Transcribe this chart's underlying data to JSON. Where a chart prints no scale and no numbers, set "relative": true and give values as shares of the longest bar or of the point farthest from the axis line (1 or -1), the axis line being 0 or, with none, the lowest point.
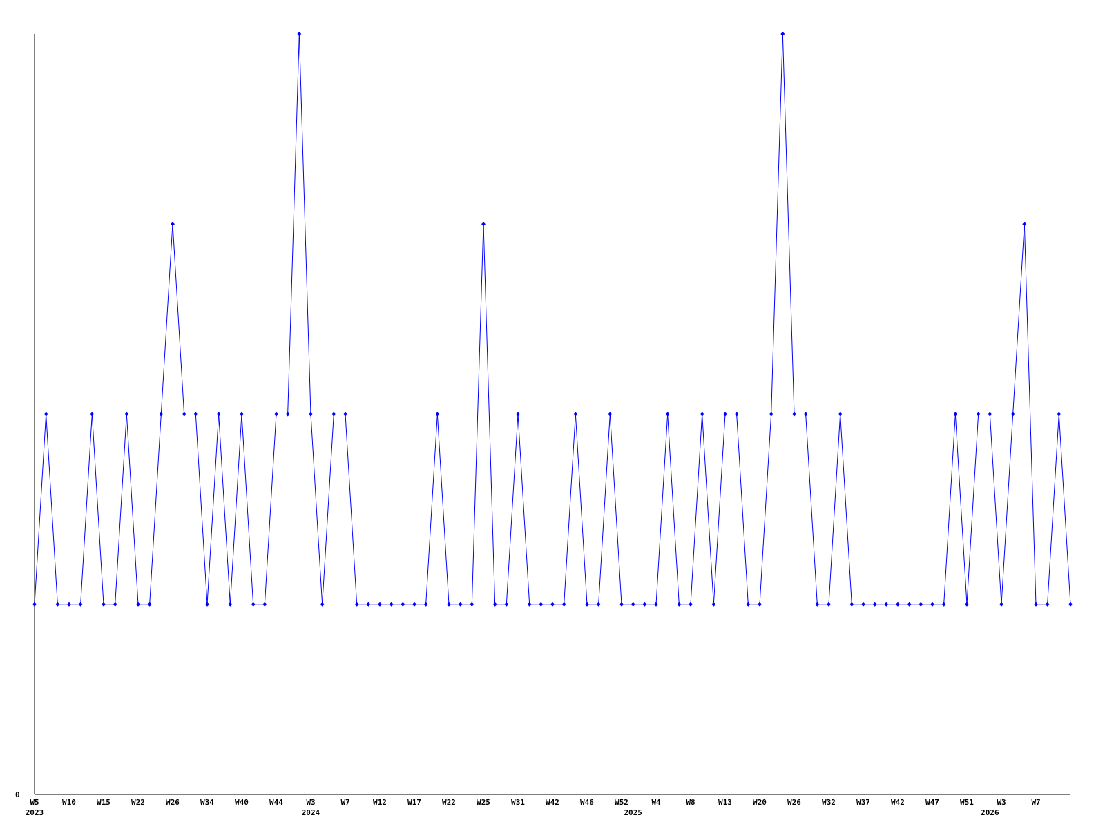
{
  "chart_data": {
    "type": "line",
    "relative": true,
    "color": "#0000ff",
    "marker": "diamond",
    "grid": false,
    "annotations": [
      "0"
    ],
    "categories": [
      "W5\n2023",
      null,
      null,
      "W10",
      null,
      null,
      "W15",
      null,
      null,
      "W22",
      null,
      null,
      "W26",
      null,
      null,
      "W34",
      null,
      null,
      "W40",
      null,
      null,
      "W44",
      null,
      null,
      "W3\n2024",
      null,
      null,
      "W7",
      null,
      null,
      "W12",
      null,
      null,
      "W17",
      null,
      null,
      "W22",
      null,
      null,
      "W25",
      null,
      null,
      "W31",
      null,
      null,
      "W42",
      null,
      null,
      "W46",
      null,
      null,
      "W52",
      "\n2025",
      null,
      "W4",
      null,
      null,
      "W8",
      null,
      null,
      "W13",
      null,
      null,
      "W20",
      null,
      null,
      "W26",
      null,
      null,
      "W32",
      null,
      null,
      "W37",
      null,
      null,
      "W42",
      null,
      null,
      "W47",
      null,
      null,
      "W51",
      null,
      "\n2026",
      "W3",
      null,
      null,
      "W7",
      null,
      null,
      null
    ],
    "values": [
      0.25,
      0.5,
      0.25,
      0.25,
      0.25,
      0.5,
      0.25,
      0.25,
      0.5,
      0.25,
      0.25,
      0.5,
      0.75,
      0.5,
      0.5,
      0.25,
      0.5,
      0.25,
      0.5,
      0.25,
      0.25,
      0.5,
      0.5,
      1,
      0.5,
      0.25,
      0.5,
      0.5,
      0.25,
      0.25,
      0.25,
      0.25,
      0.25,
      0.25,
      0.25,
      0.5,
      0.25,
      0.25,
      0.25,
      0.75,
      0.25,
      0.25,
      0.5,
      0.25,
      0.25,
      0.25,
      0.25,
      0.5,
      0.25,
      0.25,
      0.5,
      0.25,
      0.25,
      0.25,
      0.25,
      0.5,
      0.25,
      0.25,
      0.5,
      0.25,
      0.5,
      0.5,
      0.25,
      0.25,
      0.5,
      1,
      0.5,
      0.5,
      0.25,
      0.25,
      0.5,
      0.25,
      0.25,
      0.25,
      0.25,
      0.25,
      0.25,
      0.25,
      0.25,
      0.25,
      0.5,
      0.25,
      0.5,
      0.5,
      0.25,
      0.5,
      0.75,
      0.25,
      0.25,
      0.5,
      0.25
    ]
  }
}
